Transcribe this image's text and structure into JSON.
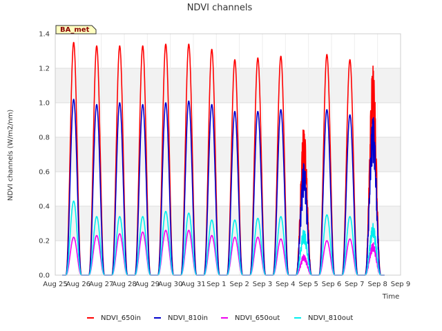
{
  "chart_data": {
    "type": "line",
    "title": "NDVI channels",
    "xlabel": "Time",
    "ylabel": "NDVI channels (W/m2/nm)",
    "ylim": [
      0,
      1.4
    ],
    "yticks": [
      0.0,
      0.2,
      0.4,
      0.6,
      0.8,
      1.0,
      1.2,
      1.4
    ],
    "ytick_labels": [
      "0.0",
      "0.2",
      "0.4",
      "0.6",
      "0.8",
      "1.0",
      "1.2",
      "1.4"
    ],
    "xlim": [
      0,
      15
    ],
    "xticks": [
      0,
      1,
      2,
      3,
      4,
      5,
      6,
      7,
      8,
      9,
      10,
      11,
      12,
      13,
      14,
      15
    ],
    "xtick_labels": [
      "Aug 25",
      "Aug 26",
      "Aug 27",
      "Aug 28",
      "Aug 29",
      "Aug 30",
      "Aug 31",
      "Sep 1",
      "Sep 2",
      "Sep 3",
      "Sep 4",
      "Sep 5",
      "Sep 6",
      "Sep 7",
      "Sep 8",
      "Sep 9"
    ],
    "grid": true,
    "badge": "BA_met",
    "legend_position": "bottom",
    "day_centers": [
      0.8,
      1.8,
      2.8,
      3.8,
      4.8,
      5.8,
      6.8,
      7.8,
      8.8,
      9.8,
      10.8,
      11.8,
      12.8,
      13.8
    ],
    "series": [
      {
        "name": "NDVI_650in",
        "color": "#ff0000",
        "peaks": [
          1.35,
          1.33,
          1.33,
          1.33,
          1.34,
          1.34,
          1.31,
          1.25,
          1.26,
          1.27,
          0.87,
          1.28,
          1.25,
          1.23
        ]
      },
      {
        "name": "NDVI_810in",
        "color": "#0000cc",
        "peaks": [
          1.02,
          0.99,
          1.0,
          0.99,
          1.0,
          1.01,
          0.99,
          0.95,
          0.95,
          0.96,
          0.66,
          0.96,
          0.93,
          0.93
        ]
      },
      {
        "name": "NDVI_650out",
        "color": "#ee00ee",
        "peaks": [
          0.22,
          0.23,
          0.24,
          0.25,
          0.26,
          0.26,
          0.23,
          0.22,
          0.22,
          0.21,
          0.12,
          0.2,
          0.21,
          0.19
        ]
      },
      {
        "name": "NDVI_810out",
        "color": "#00eeee",
        "peaks": [
          0.43,
          0.34,
          0.34,
          0.34,
          0.37,
          0.36,
          0.32,
          0.32,
          0.33,
          0.34,
          0.27,
          0.35,
          0.34,
          0.3
        ]
      }
    ]
  }
}
